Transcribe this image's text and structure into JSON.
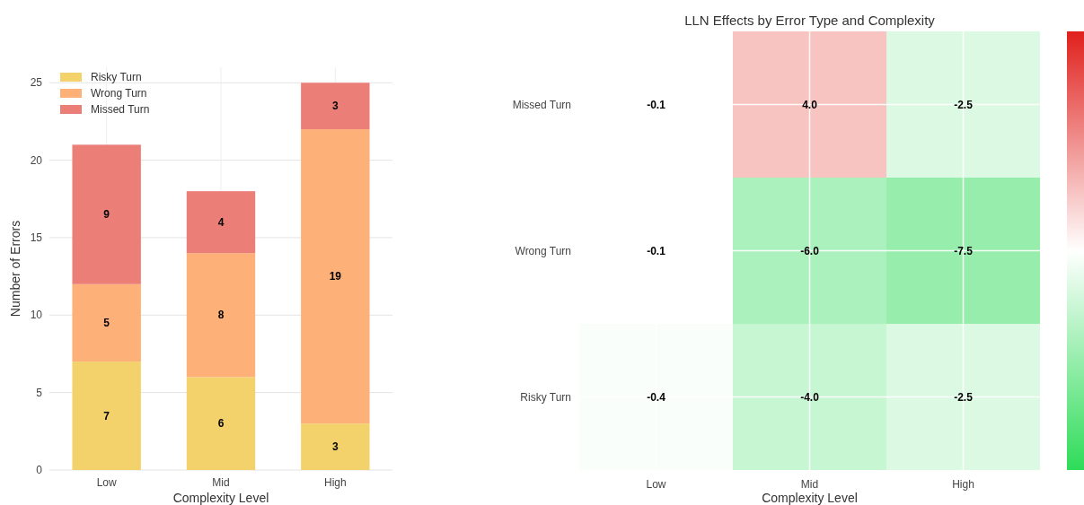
{
  "chart_data": [
    {
      "type": "bar",
      "stacked": true,
      "xlabel": "Complexity Level",
      "ylabel": "Number of Errors",
      "categories": [
        "Low",
        "Mid",
        "High"
      ],
      "series": [
        {
          "name": "Risky Turn",
          "color": "#f3d26b",
          "values": [
            7,
            6,
            3
          ]
        },
        {
          "name": "Wrong Turn",
          "color": "#fdb077",
          "values": [
            5,
            8,
            19
          ]
        },
        {
          "name": "Missed Turn",
          "color": "#ec7e78",
          "values": [
            9,
            4,
            3
          ]
        }
      ],
      "ylim": [
        0,
        26
      ],
      "yticks": [
        0,
        5,
        10,
        15,
        20,
        25
      ],
      "grid": true,
      "legend": "top left",
      "data_labels": true
    },
    {
      "type": "heatmap",
      "title": "LLN Effects by Error Type and Complexity",
      "xlabel": "Complexity Level",
      "categories": [
        "Low",
        "Mid",
        "High"
      ],
      "y_categories": [
        "Missed Turn",
        "Wrong Turn",
        "Risky Turn"
      ],
      "cells": [
        [
          -0.1,
          4.0,
          -2.5
        ],
        [
          -0.1,
          -6.0,
          -7.5
        ],
        [
          -0.4,
          -4.0,
          -2.5
        ]
      ],
      "cell_labels": [
        [
          "-0.1",
          "4.0",
          "-2.5"
        ],
        [
          "-0.1",
          "-6.0",
          "-7.5"
        ],
        [
          "-0.4",
          "-4.0",
          "-2.5"
        ]
      ],
      "grid": true
    }
  ]
}
